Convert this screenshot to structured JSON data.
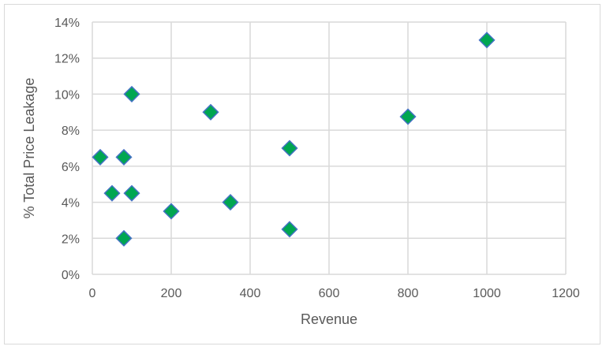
{
  "chart_data": {
    "type": "scatter",
    "title": "",
    "xlabel": "Revenue",
    "ylabel": "% Total Price Leakage",
    "xlim": [
      0,
      1200
    ],
    "ylim": [
      0,
      14
    ],
    "x_ticks": [
      "0",
      "200",
      "400",
      "600",
      "800",
      "1000",
      "1200"
    ],
    "y_ticks": [
      "0%",
      "2%",
      "4%",
      "6%",
      "8%",
      "10%",
      "12%",
      "14%"
    ],
    "grid": true,
    "legend": null,
    "series": [
      {
        "name": "Series 1",
        "marker": "diamond",
        "fill_color": "#00A651",
        "edge_color": "#4472C4",
        "points": [
          {
            "x": 20,
            "y": 6.5
          },
          {
            "x": 80,
            "y": 6.5
          },
          {
            "x": 100,
            "y": 10
          },
          {
            "x": 50,
            "y": 4.5
          },
          {
            "x": 100,
            "y": 4.5
          },
          {
            "x": 80,
            "y": 2
          },
          {
            "x": 200,
            "y": 3.5
          },
          {
            "x": 300,
            "y": 9
          },
          {
            "x": 350,
            "y": 4
          },
          {
            "x": 500,
            "y": 7
          },
          {
            "x": 500,
            "y": 2.5
          },
          {
            "x": 800,
            "y": 8.75
          },
          {
            "x": 1000,
            "y": 13
          }
        ]
      }
    ]
  },
  "colors": {
    "grid": "#D9D9D9",
    "text": "#595959",
    "marker_fill": "#00A651",
    "marker_edge": "#4472C4"
  }
}
